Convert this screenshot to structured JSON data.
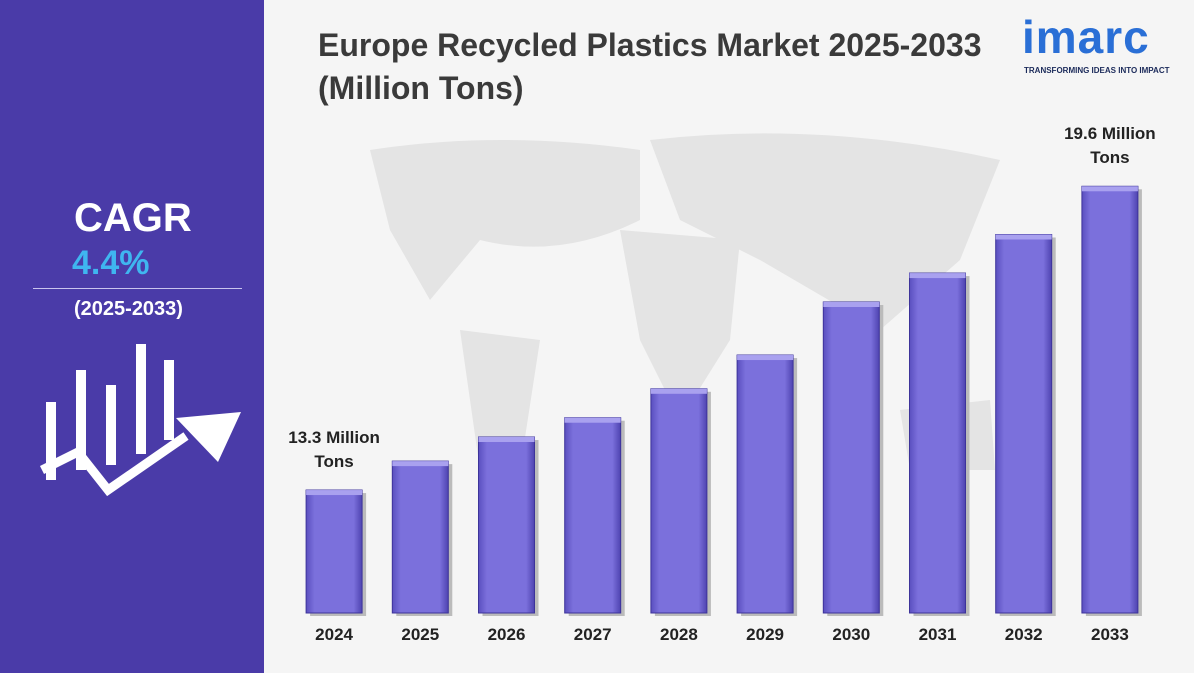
{
  "chart_data": {
    "type": "bar",
    "title": "Europe Recycled Plastics Market 2025-2033 (Million Tons)",
    "categories": [
      "2024",
      "2025",
      "2026",
      "2027",
      "2028",
      "2029",
      "2030",
      "2031",
      "2032",
      "2033"
    ],
    "values": [
      13.3,
      13.9,
      14.4,
      14.8,
      15.4,
      16.1,
      17.2,
      17.8,
      18.6,
      19.6
    ],
    "value_labels": [
      "13.3 Million Tons",
      null,
      null,
      null,
      null,
      null,
      null,
      null,
      null,
      "19.6 Million Tons"
    ],
    "color": "#7b70dc",
    "ylim": [
      10.75,
      20
    ]
  },
  "sidebar": {
    "label": "CAGR",
    "value": "4.4%",
    "period": "(2025-2033)"
  },
  "logo": {
    "name": "imarc",
    "tagline": "TRANSFORMING IDEAS INTO IMPACT"
  }
}
